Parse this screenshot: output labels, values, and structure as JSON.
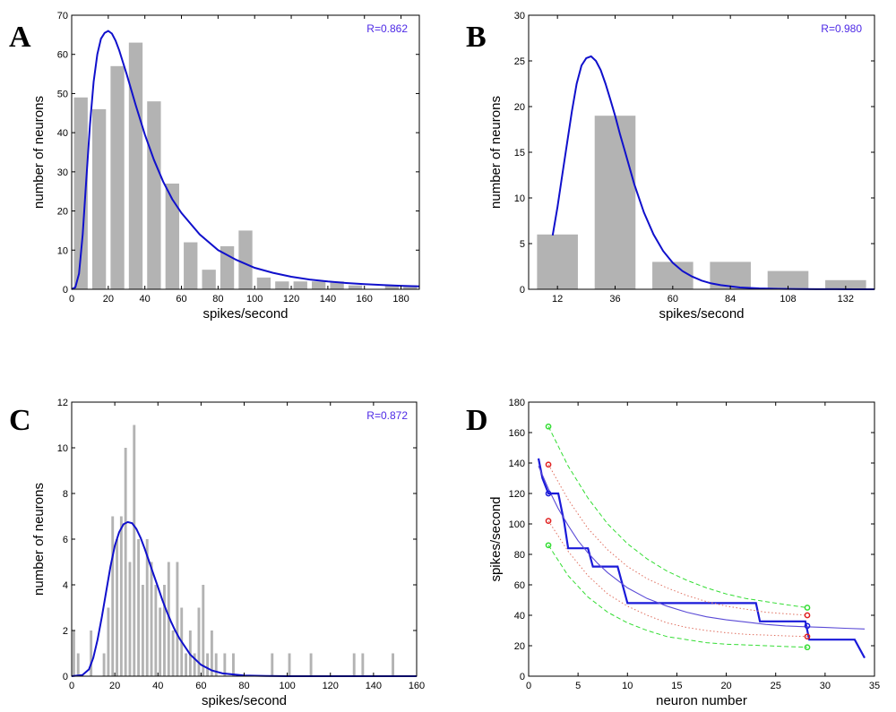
{
  "chart_data": [
    {
      "panel": "A",
      "type": "bar",
      "xlabel": "spikes/second",
      "ylabel": "number of neurons",
      "annotation": "R=0.862",
      "xlim": [
        0,
        190
      ],
      "ylim": [
        0,
        70
      ],
      "xticks": [
        0,
        20,
        40,
        60,
        80,
        100,
        120,
        140,
        160,
        180
      ],
      "yticks": [
        0,
        10,
        20,
        30,
        40,
        50,
        60,
        70
      ],
      "bar_centers": [
        5,
        15,
        25,
        35,
        45,
        55,
        65,
        75,
        85,
        95,
        105,
        115,
        125,
        135,
        145,
        155,
        165,
        175,
        185
      ],
      "values": [
        49,
        46,
        57,
        63,
        48,
        27,
        12,
        5,
        11,
        15,
        3,
        2,
        2,
        2,
        2,
        1,
        0,
        1,
        1
      ],
      "bar_width": 7.5,
      "fit_curve": {
        "x": [
          0,
          2,
          4,
          6,
          8,
          10,
          12,
          14,
          16,
          18,
          20,
          22,
          24,
          26,
          28,
          30,
          35,
          40,
          45,
          50,
          55,
          60,
          70,
          80,
          90,
          100,
          110,
          120,
          130,
          140,
          150,
          160,
          170,
          180,
          190
        ],
        "y": [
          0,
          0.5,
          4,
          14,
          28,
          42,
          53,
          60,
          64,
          65.5,
          66,
          65.3,
          63.5,
          61,
          58,
          55,
          47,
          39.5,
          33,
          27.5,
          23,
          19.5,
          14,
          10,
          7.5,
          5.5,
          4.2,
          3.2,
          2.5,
          2,
          1.6,
          1.3,
          1.1,
          0.9,
          0.75
        ]
      },
      "colors": {
        "bar": "#b3b3b3",
        "curve": "#1010cc",
        "annotation": "#4d29e6"
      }
    },
    {
      "panel": "B",
      "type": "bar",
      "xlabel": "spikes/second",
      "ylabel": "number of neurons",
      "annotation": "R=0.980",
      "xlim": [
        0,
        144
      ],
      "ylim": [
        0,
        30
      ],
      "xticks": [
        12,
        36,
        60,
        84,
        108,
        132
      ],
      "yticks": [
        0,
        5,
        10,
        15,
        20,
        25,
        30
      ],
      "bar_centers": [
        12,
        36,
        60,
        84,
        108,
        132
      ],
      "values": [
        6,
        19,
        3,
        3,
        2,
        1
      ],
      "bar_width": 17,
      "fit_curve": {
        "x": [
          10,
          12,
          14,
          16,
          18,
          20,
          22,
          24,
          26,
          28,
          30,
          32,
          34,
          36,
          38,
          40,
          44,
          48,
          52,
          56,
          60,
          64,
          68,
          72,
          76,
          80,
          88,
          96,
          104,
          112,
          120,
          128,
          136,
          144
        ],
        "y": [
          5.9,
          9,
          12.5,
          16,
          19.5,
          22.5,
          24.5,
          25.3,
          25.5,
          25,
          24,
          22.5,
          20.8,
          19,
          17,
          15.2,
          11.5,
          8.4,
          6,
          4.2,
          2.9,
          2,
          1.4,
          0.95,
          0.65,
          0.45,
          0.2,
          0.1,
          0.05,
          0.02,
          0.01,
          0.005,
          0.002,
          0.001
        ]
      },
      "colors": {
        "bar": "#b3b3b3",
        "curve": "#1010cc",
        "annotation": "#4d29e6"
      }
    },
    {
      "panel": "C",
      "type": "bar",
      "xlabel": "spikes/second",
      "ylabel": "number of neurons",
      "annotation": "R=0.872",
      "xlim": [
        0,
        160
      ],
      "ylim": [
        0,
        12
      ],
      "xticks": [
        0,
        20,
        40,
        60,
        80,
        100,
        120,
        140,
        160
      ],
      "yticks": [
        0,
        2,
        4,
        6,
        8,
        10,
        12
      ],
      "bar_centers": [
        1,
        3,
        9,
        15,
        17,
        19,
        21,
        23,
        25,
        27,
        29,
        31,
        33,
        35,
        37,
        39,
        41,
        43,
        45,
        47,
        49,
        51,
        53,
        55,
        57,
        59,
        61,
        63,
        65,
        67,
        71,
        75,
        93,
        101,
        111,
        131,
        135,
        149
      ],
      "values": [
        2,
        1,
        2,
        1,
        3,
        7,
        6,
        7,
        10,
        5,
        11,
        6,
        4,
        6,
        5,
        4,
        3,
        4,
        5,
        2,
        5,
        3,
        1,
        2,
        1,
        3,
        4,
        1,
        2,
        1,
        1,
        1,
        1,
        1,
        1,
        1,
        1,
        1
      ],
      "bar_width": 1.2,
      "fit_curve": {
        "x": [
          0,
          5,
          8,
          10,
          12,
          14,
          16,
          18,
          20,
          22,
          24,
          26,
          28,
          30,
          32,
          34,
          36,
          38,
          40,
          42,
          44,
          46,
          48,
          50,
          55,
          60,
          65,
          70,
          80,
          90,
          100,
          120,
          140,
          160
        ],
        "y": [
          0,
          0.05,
          0.3,
          0.8,
          1.6,
          2.6,
          3.7,
          4.8,
          5.7,
          6.3,
          6.65,
          6.75,
          6.7,
          6.45,
          6.05,
          5.55,
          5.0,
          4.45,
          3.9,
          3.35,
          2.85,
          2.4,
          2.0,
          1.65,
          0.95,
          0.5,
          0.25,
          0.12,
          0.03,
          0.01,
          0,
          0,
          0,
          0
        ]
      },
      "colors": {
        "bar": "#b3b3b3",
        "curve": "#1010cc",
        "annotation": "#4d29e6"
      }
    },
    {
      "panel": "D",
      "type": "line",
      "xlabel": "neuron number",
      "ylabel": "spikes/second",
      "xlim": [
        0,
        35
      ],
      "ylim": [
        0,
        180
      ],
      "xticks": [
        0,
        5,
        10,
        15,
        20,
        25,
        30,
        35
      ],
      "yticks": [
        0,
        20,
        40,
        60,
        80,
        100,
        120,
        140,
        160,
        180
      ],
      "series": [
        {
          "kind": "step",
          "color": "#1a1ad9",
          "x": [
            1,
            1.4,
            2,
            3,
            3.6,
            4,
            6,
            6.5,
            8,
            9,
            10,
            10.2,
            23,
            23.4,
            28,
            28.4,
            33,
            34
          ],
          "y": [
            143,
            130,
            120,
            120,
            101,
            84,
            84,
            72,
            72,
            72,
            48,
            48,
            48,
            36,
            36,
            24,
            24,
            12
          ]
        },
        {
          "kind": "fit",
          "color": "#5a4ad6",
          "x": [
            1,
            2,
            3,
            4,
            5,
            6,
            7,
            8,
            10,
            12,
            14,
            16,
            18,
            20,
            22,
            24,
            26,
            28,
            30,
            32,
            34
          ],
          "y": [
            138,
            123,
            110,
            99,
            89,
            81,
            74,
            68,
            58,
            51,
            46,
            42,
            39,
            37,
            35.5,
            34,
            33,
            32.5,
            32,
            31.5,
            31
          ]
        },
        {
          "kind": "upper-green",
          "color": "#33dd33",
          "x": [
            2,
            4,
            6,
            8,
            10,
            12,
            14,
            16,
            18,
            20,
            22,
            24,
            26,
            28.2
          ],
          "y": [
            164,
            138,
            117,
            100,
            87,
            77,
            69,
            63,
            58,
            54,
            51,
            49,
            47,
            45
          ]
        },
        {
          "kind": "lower-green",
          "color": "#33dd33",
          "x": [
            2,
            4,
            6,
            8,
            10,
            12,
            14,
            16,
            18,
            20,
            22,
            24,
            26,
            28.2
          ],
          "y": [
            86,
            66,
            52,
            42,
            35,
            30,
            26,
            24,
            22,
            21,
            20.5,
            20,
            19.5,
            19
          ]
        },
        {
          "kind": "upper-red",
          "color": "#e07060",
          "x": [
            2,
            4,
            6,
            8,
            10,
            12,
            14,
            16,
            18,
            20,
            22,
            24,
            26,
            28.2
          ],
          "y": [
            139,
            116,
            97,
            83,
            72,
            64,
            58,
            53,
            49,
            46,
            44,
            42,
            41,
            40
          ]
        },
        {
          "kind": "lower-red",
          "color": "#e07060",
          "x": [
            2,
            4,
            6,
            8,
            10,
            12,
            14,
            16,
            18,
            20,
            22,
            24,
            26,
            28.2
          ],
          "y": [
            102,
            82,
            66,
            54,
            46,
            40,
            35,
            32,
            30,
            28.5,
            27.5,
            27,
            26.5,
            26
          ]
        }
      ],
      "markers": [
        {
          "x": 2,
          "y": 164,
          "color": "#33dd33"
        },
        {
          "x": 2,
          "y": 139,
          "color": "#e02020"
        },
        {
          "x": 2,
          "y": 120,
          "color": "#1a1ad9"
        },
        {
          "x": 2,
          "y": 102,
          "color": "#e02020"
        },
        {
          "x": 2,
          "y": 86,
          "color": "#33dd33"
        },
        {
          "x": 28.2,
          "y": 45,
          "color": "#33dd33"
        },
        {
          "x": 28.2,
          "y": 40,
          "color": "#e02020"
        },
        {
          "x": 28.2,
          "y": 33,
          "color": "#1a1ad9"
        },
        {
          "x": 28.2,
          "y": 26,
          "color": "#e02020"
        },
        {
          "x": 28.2,
          "y": 19,
          "color": "#33dd33"
        }
      ]
    }
  ]
}
